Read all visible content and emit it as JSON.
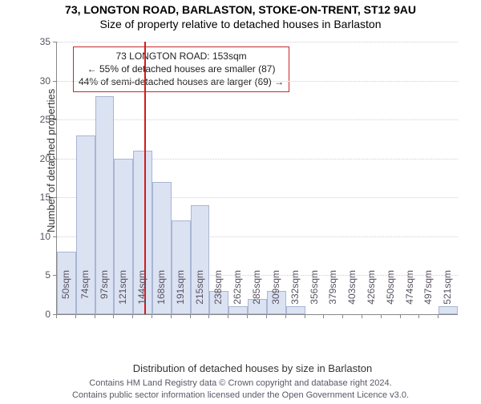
{
  "header": {
    "title": "73, LONGTON ROAD, BARLASTON, STOKE-ON-TRENT, ST12 9AU",
    "subtitle": "Size of property relative to detached houses in Barlaston"
  },
  "chart": {
    "type": "histogram",
    "ylabel": "Number of detached properties",
    "xlabel": "Distribution of detached houses by size in Barlaston",
    "ylim": [
      0,
      35
    ],
    "ytick_step": 5,
    "background_color": "#ffffff",
    "grid_color": "#cfcfd6",
    "axis_color": "#888888",
    "bar_fill": "#dbe2f2",
    "bar_border": "#a9b5d4",
    "tick_fontsize": 12,
    "label_fontsize": 13,
    "marker_line_color": "#d11c1c",
    "marker_value_sqm": 153,
    "categories": [
      "50sqm",
      "74sqm",
      "97sqm",
      "121sqm",
      "144sqm",
      "168sqm",
      "191sqm",
      "215sqm",
      "238sqm",
      "262sqm",
      "285sqm",
      "309sqm",
      "332sqm",
      "356sqm",
      "379sqm",
      "403sqm",
      "426sqm",
      "450sqm",
      "474sqm",
      "497sqm",
      "521sqm"
    ],
    "values": [
      8,
      23,
      28,
      20,
      21,
      17,
      12,
      14,
      3,
      1,
      2,
      3,
      1,
      0,
      0,
      0,
      0,
      0,
      0,
      0,
      1
    ]
  },
  "annotation": {
    "border_color": "#c82a2a",
    "background_color": "#ffffff",
    "line1": "73 LONGTON ROAD: 153sqm",
    "line2": "← 55% of detached houses are smaller (87)",
    "line3": "44% of semi-detached houses are larger (69) →"
  },
  "footer": {
    "line1": "Contains HM Land Registry data © Crown copyright and database right 2024.",
    "line2": "Contains public sector information licensed under the Open Government Licence v3.0."
  }
}
